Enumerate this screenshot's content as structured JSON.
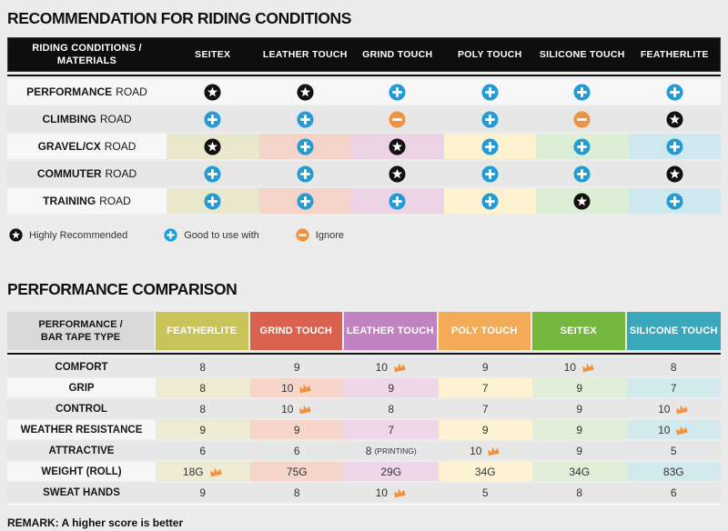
{
  "riding": {
    "title": "RECOMMENDATION FOR RIDING CONDITIONS",
    "corner_line1": "RIDING CONDITIONS /",
    "corner_line2": "MATERIALS",
    "columns": [
      "SEITEX",
      "LEATHER TOUCH",
      "GRIND TOUCH",
      "POLY TOUCH",
      "SILICONE TOUCH",
      "FEATHERLITE"
    ],
    "column_tints": [
      "#e9e8cd",
      "#f4d3c9",
      "#ecd3e6",
      "#fdf2d0",
      "#dceed6",
      "#cfe7ee"
    ],
    "rows": [
      {
        "name": "PERFORMANCE",
        "suffix": "ROAD",
        "variant": "light",
        "icons": [
          "star",
          "star",
          "plus",
          "plus",
          "plus",
          "plus"
        ]
      },
      {
        "name": "CLIMBING",
        "suffix": "ROAD",
        "variant": "gray",
        "icons": [
          "plus",
          "plus",
          "minus",
          "plus",
          "minus",
          "star"
        ]
      },
      {
        "name": "GRAVEL/CX",
        "suffix": "ROAD",
        "variant": "tinted",
        "icons": [
          "star",
          "plus",
          "star",
          "plus",
          "plus",
          "plus"
        ]
      },
      {
        "name": "COMMUTER",
        "suffix": "ROAD",
        "variant": "gray",
        "icons": [
          "plus",
          "plus",
          "star",
          "plus",
          "plus",
          "star"
        ]
      },
      {
        "name": "TRAINING",
        "suffix": "ROAD",
        "variant": "tinted",
        "icons": [
          "plus",
          "plus",
          "plus",
          "plus",
          "star",
          "plus"
        ]
      }
    ],
    "legend": [
      {
        "icon": "star",
        "label": "Highly Recommended"
      },
      {
        "icon": "plus",
        "label": "Good to use with"
      },
      {
        "icon": "minus",
        "label": "Ignore"
      }
    ]
  },
  "performance": {
    "title": "PERFORMANCE COMPARISON",
    "corner_line1": "PERFORMANCE /",
    "corner_line2": "BAR TAPE TYPE",
    "columns": [
      {
        "label": "FEATHERLITE",
        "color": "#c9c45a",
        "tint": "#edebd2"
      },
      {
        "label": "GRIND TOUCH",
        "color": "#d9614d",
        "tint": "#f6d5cb"
      },
      {
        "label": "LEATHER TOUCH",
        "color": "#c082c0",
        "tint": "#eed7ea"
      },
      {
        "label": "POLY TOUCH",
        "color": "#f3ab58",
        "tint": "#fdf3d3"
      },
      {
        "label": "SEITEX",
        "color": "#74b73e",
        "tint": "#dfefd8"
      },
      {
        "label": "SILICONE TOUCH",
        "color": "#3aa8bb",
        "tint": "#d2e9ee"
      }
    ],
    "rows": [
      {
        "label": "COMFORT",
        "variant": "gray",
        "cells": [
          {
            "v": "8"
          },
          {
            "v": "9"
          },
          {
            "v": "10",
            "crown": true
          },
          {
            "v": "9"
          },
          {
            "v": "10",
            "crown": true
          },
          {
            "v": "8"
          }
        ]
      },
      {
        "label": "GRIP",
        "variant": "tinted",
        "cells": [
          {
            "v": "8"
          },
          {
            "v": "10",
            "crown": true
          },
          {
            "v": "9"
          },
          {
            "v": "7"
          },
          {
            "v": "9"
          },
          {
            "v": "7"
          }
        ]
      },
      {
        "label": "CONTROL",
        "variant": "gray",
        "cells": [
          {
            "v": "8"
          },
          {
            "v": "10",
            "crown": true
          },
          {
            "v": "8"
          },
          {
            "v": "7"
          },
          {
            "v": "9"
          },
          {
            "v": "10",
            "crown": true
          }
        ]
      },
      {
        "label": "WEATHER RESISTANCE",
        "variant": "tinted",
        "cells": [
          {
            "v": "9"
          },
          {
            "v": "9"
          },
          {
            "v": "7"
          },
          {
            "v": "9"
          },
          {
            "v": "9"
          },
          {
            "v": "10",
            "crown": true
          }
        ]
      },
      {
        "label": "ATTRACTIVE",
        "variant": "gray",
        "cells": [
          {
            "v": "6"
          },
          {
            "v": "6"
          },
          {
            "v": "8",
            "suffix": "(PRINTING)"
          },
          {
            "v": "10",
            "crown": true
          },
          {
            "v": "9"
          },
          {
            "v": "5"
          }
        ]
      },
      {
        "label": "WEIGHT (ROLL)",
        "variant": "tinted",
        "cells": [
          {
            "v": "18G",
            "crown": true
          },
          {
            "v": "75G"
          },
          {
            "v": "29G"
          },
          {
            "v": "34G"
          },
          {
            "v": "34G"
          },
          {
            "v": "83G"
          }
        ]
      },
      {
        "label": "SWEAT HANDS",
        "variant": "gray",
        "cells": [
          {
            "v": "9"
          },
          {
            "v": "8"
          },
          {
            "v": "10",
            "crown": true
          },
          {
            "v": "5"
          },
          {
            "v": "8"
          },
          {
            "v": "6"
          }
        ]
      }
    ],
    "remark": "REMARK: A higher score is better"
  },
  "icon_colors": {
    "star": "#111111",
    "plus": "#209dd8",
    "minus": "#f09340",
    "crown": "#f0923c",
    "icon_glyph": "#ffffff"
  }
}
